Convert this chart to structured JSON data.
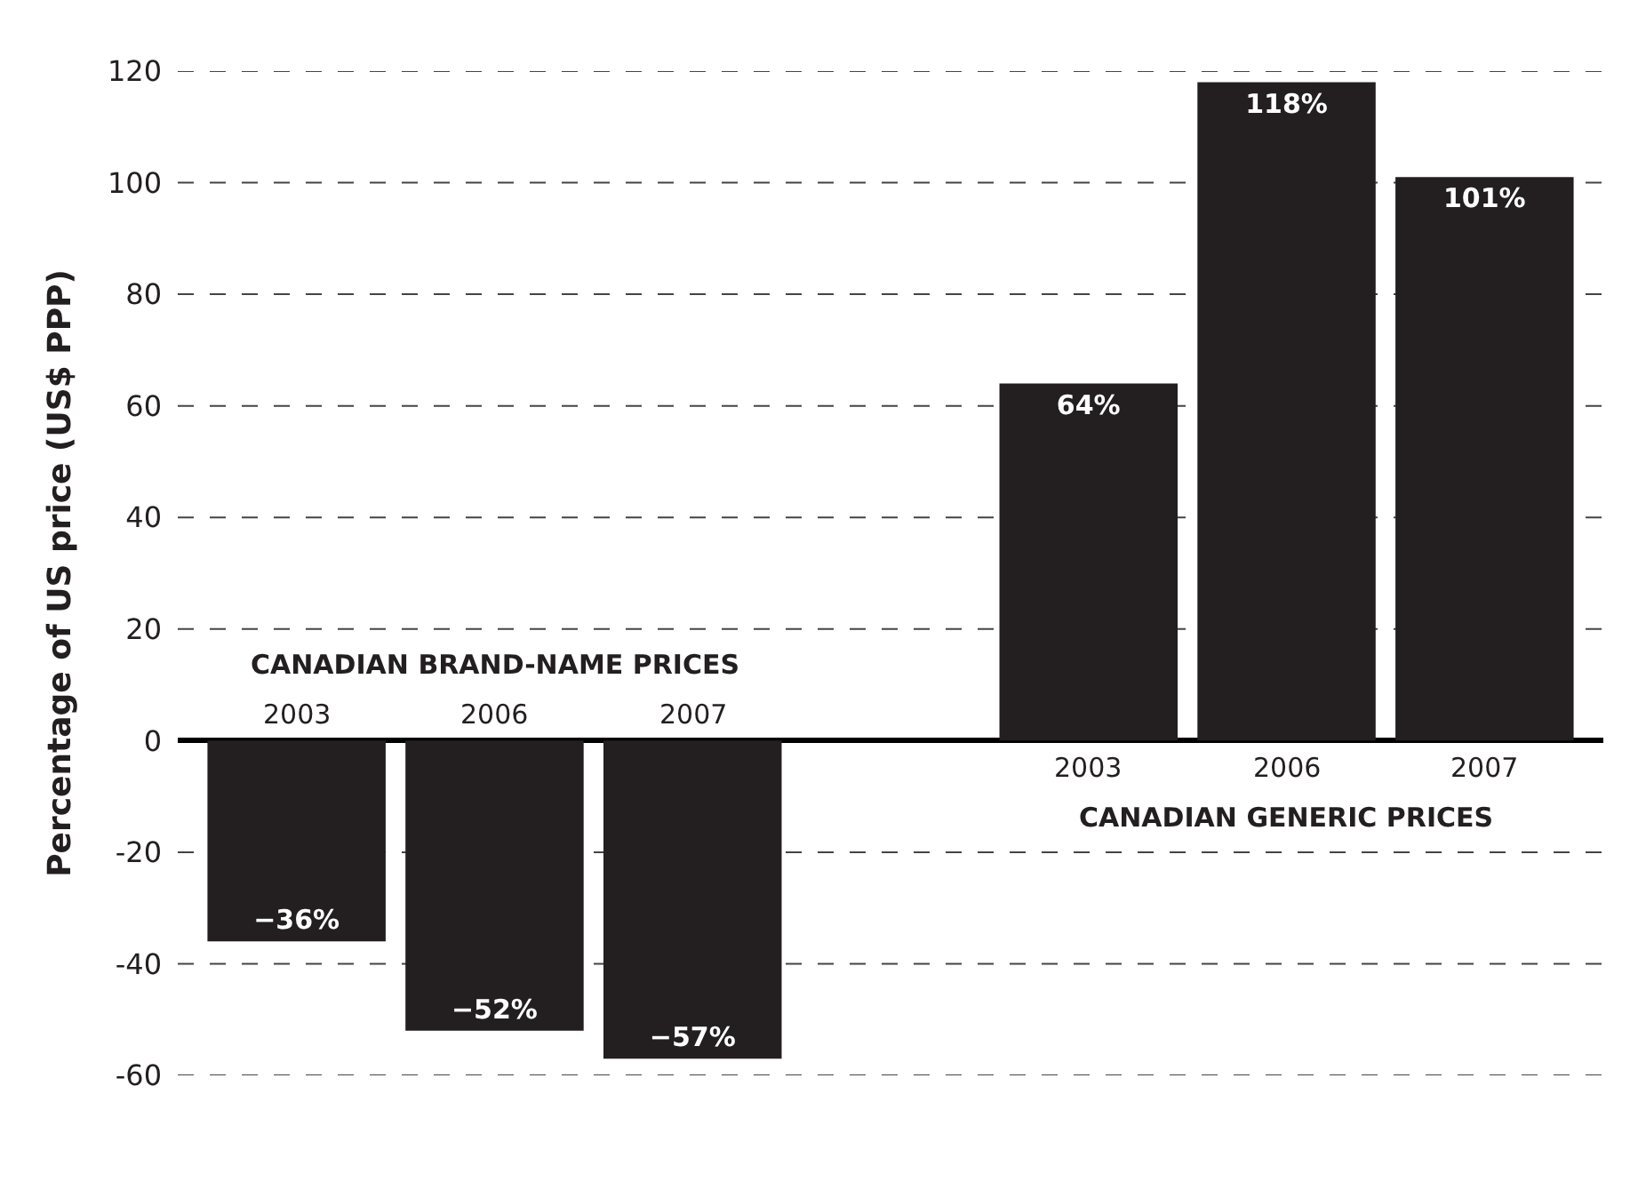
{
  "chart_data": {
    "type": "bar",
    "ylabel": "Percentage of US price (US$ PPP)",
    "categories": [
      "2003",
      "2006",
      "2007",
      null,
      "2003",
      "2006",
      "2007"
    ],
    "values": [
      -36,
      -52,
      -57,
      null,
      64,
      118,
      101
    ],
    "value_labels": [
      "−36%",
      "−52%",
      "−57%",
      null,
      "64%",
      "118%",
      "101%"
    ],
    "color": "#231f20",
    "ylim": [
      -60,
      120
    ],
    "yticks": [
      -60,
      -40,
      -20,
      0,
      20,
      40,
      60,
      80,
      100,
      120
    ],
    "grid": "y",
    "annotations": [
      "CANADIAN BRAND-NAME PRICES",
      "CANADIAN GENERIC PRICES"
    ]
  }
}
